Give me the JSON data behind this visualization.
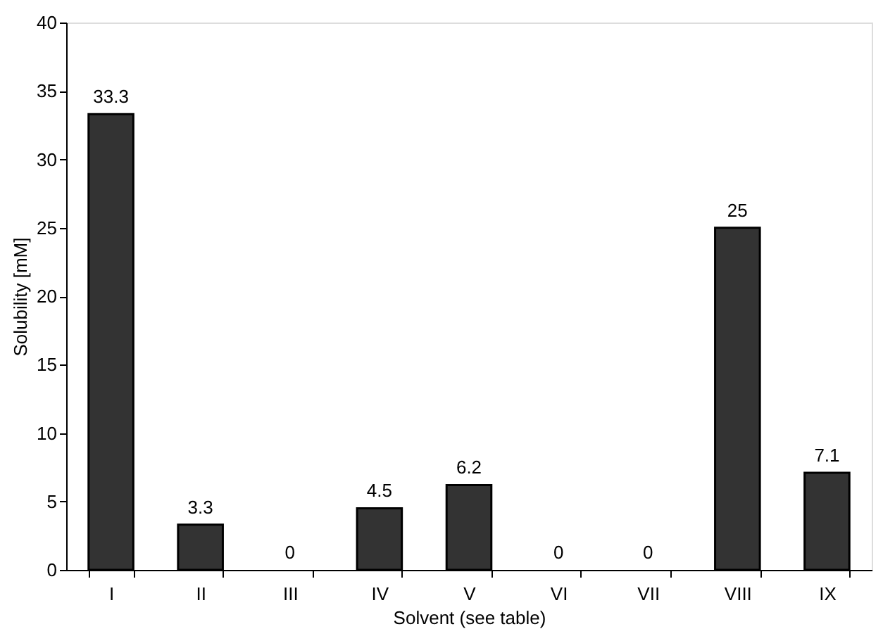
{
  "chart_data": {
    "type": "bar",
    "xlabel": "Solvent (see table)",
    "ylabel": "Solubility [mM]",
    "categories": [
      "I",
      "II",
      "III",
      "IV",
      "V",
      "VI",
      "VII",
      "VIII",
      "IX"
    ],
    "values": [
      33.3,
      3.3,
      0,
      4.5,
      6.2,
      0,
      0,
      25,
      7.1
    ],
    "color": "#333333",
    "ylim": [
      0,
      40
    ],
    "yticks": [
      0,
      5,
      10,
      15,
      20,
      25,
      30,
      35,
      40
    ],
    "grid": false,
    "data_labels": true
  }
}
